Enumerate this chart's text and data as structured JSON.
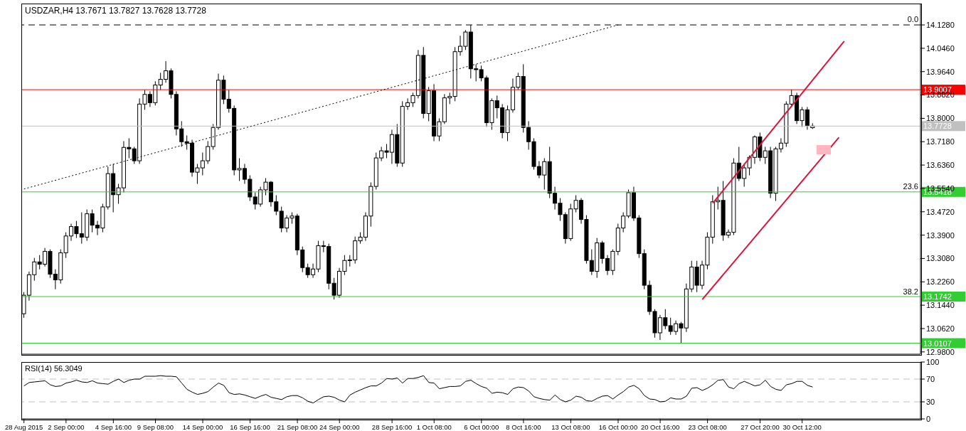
{
  "chart_data": [
    {
      "type": "candlestick",
      "title": "USDZAR,H4 13.7671 13.7827 13.7628 13.7728",
      "ohlc": [
        [
          13.114,
          13.19,
          13.1,
          13.179
        ],
        [
          13.179,
          13.262,
          13.16,
          13.251
        ],
        [
          13.251,
          13.31,
          13.23,
          13.296
        ],
        [
          13.296,
          13.32,
          13.27,
          13.288
        ],
        [
          13.288,
          13.345,
          13.28,
          13.333
        ],
        [
          13.333,
          13.34,
          13.24,
          13.253
        ],
        [
          13.253,
          13.27,
          13.2,
          13.233
        ],
        [
          13.233,
          13.34,
          13.22,
          13.328
        ],
        [
          13.328,
          13.4,
          13.31,
          13.387
        ],
        [
          13.387,
          13.43,
          13.37,
          13.42
        ],
        [
          13.42,
          13.44,
          13.38,
          13.395
        ],
        [
          13.395,
          13.47,
          13.36,
          13.383
        ],
        [
          13.383,
          13.48,
          13.37,
          13.465
        ],
        [
          13.465,
          13.48,
          13.4,
          13.425
        ],
        [
          13.425,
          13.44,
          13.39,
          13.415
        ],
        [
          13.415,
          13.5,
          13.4,
          13.489
        ],
        [
          13.489,
          13.63,
          13.48,
          13.606
        ],
        [
          13.606,
          13.64,
          13.47,
          13.532
        ],
        [
          13.532,
          13.57,
          13.5,
          13.556
        ],
        [
          13.556,
          13.72,
          13.54,
          13.698
        ],
        [
          13.698,
          13.73,
          13.66,
          13.693
        ],
        [
          13.693,
          13.7,
          13.64,
          13.651
        ],
        [
          13.651,
          13.87,
          13.64,
          13.85
        ],
        [
          13.85,
          13.9,
          13.83,
          13.884
        ],
        [
          13.884,
          13.895,
          13.84,
          13.855
        ],
        [
          13.855,
          13.93,
          13.845,
          13.917
        ],
        [
          13.917,
          13.96,
          13.9,
          13.937
        ],
        [
          13.937,
          14.001,
          13.925,
          13.967
        ],
        [
          13.967,
          13.975,
          13.87,
          13.884
        ],
        [
          13.884,
          13.895,
          13.74,
          13.763
        ],
        [
          13.763,
          13.79,
          13.7,
          13.718
        ],
        [
          13.718,
          13.74,
          13.69,
          13.713
        ],
        [
          13.713,
          13.725,
          13.595,
          13.611
        ],
        [
          13.611,
          13.64,
          13.57,
          13.626
        ],
        [
          13.626,
          13.68,
          13.6,
          13.651
        ],
        [
          13.651,
          13.72,
          13.64,
          13.701
        ],
        [
          13.701,
          13.78,
          13.69,
          13.768
        ],
        [
          13.768,
          13.957,
          13.76,
          13.934
        ],
        [
          13.934,
          13.95,
          13.85,
          13.867
        ],
        [
          13.867,
          13.9,
          13.82,
          13.835
        ],
        [
          13.835,
          13.845,
          13.6,
          13.619
        ],
        [
          13.619,
          13.66,
          13.58,
          13.624
        ],
        [
          13.624,
          13.64,
          13.57,
          13.586
        ],
        [
          13.586,
          13.6,
          13.51,
          13.524
        ],
        [
          13.524,
          13.54,
          13.48,
          13.499
        ],
        [
          13.499,
          13.56,
          13.49,
          13.549
        ],
        [
          13.549,
          13.59,
          13.53,
          13.576
        ],
        [
          13.576,
          13.58,
          13.49,
          13.507
        ],
        [
          13.507,
          13.53,
          13.46,
          13.474
        ],
        [
          13.474,
          13.49,
          13.4,
          13.415
        ],
        [
          13.415,
          13.46,
          13.4,
          13.45
        ],
        [
          13.45,
          13.47,
          13.43,
          13.457
        ],
        [
          13.457,
          13.465,
          13.32,
          13.338
        ],
        [
          13.338,
          13.35,
          13.26,
          13.276
        ],
        [
          13.276,
          13.29,
          13.24,
          13.251
        ],
        [
          13.251,
          13.29,
          13.24,
          13.271
        ],
        [
          13.271,
          13.37,
          13.26,
          13.353
        ],
        [
          13.353,
          13.37,
          13.33,
          13.35
        ],
        [
          13.35,
          13.36,
          13.2,
          13.221
        ],
        [
          13.221,
          13.24,
          13.164,
          13.179
        ],
        [
          13.179,
          13.275,
          13.17,
          13.263
        ],
        [
          13.263,
          13.32,
          13.25,
          13.301
        ],
        [
          13.301,
          13.32,
          13.28,
          13.303
        ],
        [
          13.303,
          13.385,
          13.29,
          13.37
        ],
        [
          13.37,
          13.4,
          13.36,
          13.383
        ],
        [
          13.383,
          13.47,
          13.37,
          13.457
        ],
        [
          13.457,
          13.575,
          13.42,
          13.561
        ],
        [
          13.561,
          13.68,
          13.55,
          13.661
        ],
        [
          13.661,
          13.7,
          13.65,
          13.686
        ],
        [
          13.686,
          13.71,
          13.66,
          13.681
        ],
        [
          13.681,
          13.76,
          13.64,
          13.743
        ],
        [
          13.743,
          13.78,
          13.63,
          13.643
        ],
        [
          13.643,
          13.86,
          13.63,
          13.842
        ],
        [
          13.842,
          13.87,
          13.83,
          13.855
        ],
        [
          13.855,
          13.89,
          13.84,
          13.88
        ],
        [
          13.88,
          14.04,
          13.87,
          14.021
        ],
        [
          14.021,
          14.05,
          13.8,
          13.817
        ],
        [
          13.817,
          13.91,
          13.79,
          13.897
        ],
        [
          13.897,
          13.92,
          13.72,
          13.738
        ],
        [
          13.738,
          13.8,
          13.72,
          13.788
        ],
        [
          13.788,
          13.885,
          13.78,
          13.872
        ],
        [
          13.872,
          13.89,
          13.85,
          13.877
        ],
        [
          13.877,
          14.05,
          13.86,
          14.034
        ],
        [
          14.034,
          14.09,
          14.02,
          14.053
        ],
        [
          14.053,
          14.11,
          14.04,
          14.103
        ],
        [
          14.103,
          14.128,
          13.94,
          13.974
        ],
        [
          13.974,
          13.99,
          13.93,
          13.971
        ],
        [
          13.971,
          13.985,
          13.93,
          13.942
        ],
        [
          13.942,
          13.95,
          13.77,
          13.785
        ],
        [
          13.785,
          13.87,
          13.76,
          13.862
        ],
        [
          13.862,
          13.88,
          13.8,
          13.837
        ],
        [
          13.837,
          13.85,
          13.73,
          13.75
        ],
        [
          13.75,
          13.845,
          13.72,
          13.83
        ],
        [
          13.83,
          13.94,
          13.82,
          13.909
        ],
        [
          13.909,
          13.96,
          13.9,
          13.947
        ],
        [
          13.947,
          13.99,
          13.75,
          13.768
        ],
        [
          13.768,
          13.79,
          13.69,
          13.718
        ],
        [
          13.718,
          13.73,
          13.62,
          13.631
        ],
        [
          13.631,
          13.65,
          13.59,
          13.601
        ],
        [
          13.601,
          13.66,
          13.55,
          13.648
        ],
        [
          13.648,
          13.7,
          13.52,
          13.537
        ],
        [
          13.537,
          13.56,
          13.48,
          13.502
        ],
        [
          13.502,
          13.52,
          13.44,
          13.462
        ],
        [
          13.462,
          13.47,
          13.36,
          13.378
        ],
        [
          13.378,
          13.5,
          13.37,
          13.482
        ],
        [
          13.482,
          13.53,
          13.47,
          13.512
        ],
        [
          13.512,
          13.52,
          13.43,
          13.445
        ],
        [
          13.445,
          13.46,
          13.29,
          13.301
        ],
        [
          13.301,
          13.34,
          13.25,
          13.263
        ],
        [
          13.263,
          13.38,
          13.24,
          13.363
        ],
        [
          13.363,
          13.37,
          13.29,
          13.308
        ],
        [
          13.308,
          13.32,
          13.25,
          13.266
        ],
        [
          13.266,
          13.34,
          13.25,
          13.333
        ],
        [
          13.333,
          13.43,
          13.32,
          13.415
        ],
        [
          13.415,
          13.47,
          13.4,
          13.457
        ],
        [
          13.457,
          13.55,
          13.45,
          13.539
        ],
        [
          13.539,
          13.56,
          13.44,
          13.45
        ],
        [
          13.45,
          13.46,
          13.31,
          13.325
        ],
        [
          13.325,
          13.34,
          13.2,
          13.214
        ],
        [
          13.214,
          13.23,
          13.11,
          13.122
        ],
        [
          13.122,
          13.13,
          13.03,
          13.047
        ],
        [
          13.047,
          13.11,
          13.022,
          13.1
        ],
        [
          13.1,
          13.13,
          13.06,
          13.072
        ],
        [
          13.072,
          13.1,
          13.04,
          13.052
        ],
        [
          13.052,
          13.09,
          13.04,
          13.079
        ],
        [
          13.079,
          13.085,
          13.011,
          13.064
        ],
        [
          13.064,
          13.22,
          13.05,
          13.201
        ],
        [
          13.201,
          13.3,
          13.19,
          13.278
        ],
        [
          13.278,
          13.3,
          13.19,
          13.214
        ],
        [
          13.214,
          13.3,
          13.2,
          13.285
        ],
        [
          13.285,
          13.4,
          13.27,
          13.383
        ],
        [
          13.383,
          13.53,
          13.36,
          13.507
        ],
        [
          13.507,
          13.56,
          13.48,
          13.512
        ],
        [
          13.512,
          13.58,
          13.37,
          13.39
        ],
        [
          13.39,
          13.41,
          13.38,
          13.4
        ],
        [
          13.4,
          13.66,
          13.39,
          13.643
        ],
        [
          13.643,
          13.7,
          13.58,
          13.589
        ],
        [
          13.589,
          13.64,
          13.56,
          13.626
        ],
        [
          13.626,
          13.67,
          13.6,
          13.663
        ],
        [
          13.663,
          13.74,
          13.64,
          13.735
        ],
        [
          13.735,
          13.75,
          13.65,
          13.663
        ],
        [
          13.663,
          13.7,
          13.64,
          13.686
        ],
        [
          13.686,
          13.7,
          13.52,
          13.537
        ],
        [
          13.537,
          13.7,
          13.51,
          13.693
        ],
        [
          13.693,
          13.73,
          13.68,
          13.713
        ],
        [
          13.713,
          13.86,
          13.7,
          13.85
        ],
        [
          13.85,
          13.901,
          13.84,
          13.88
        ],
        [
          13.88,
          13.89,
          13.78,
          13.792
        ],
        [
          13.792,
          13.84,
          13.77,
          13.83
        ],
        [
          13.83,
          13.84,
          13.76,
          13.775
        ],
        [
          13.7671,
          13.7827,
          13.7628,
          13.7728
        ],
        null,
        null,
        null,
        null,
        null,
        null,
        null,
        null,
        null,
        null,
        null,
        null,
        null,
        null,
        null,
        null,
        null,
        null,
        null,
        null
      ],
      "ylim": [
        12.972,
        14.203
      ],
      "yticks": [
        {
          "value": 12.98,
          "label": "12.9800"
        },
        {
          "value": 13.062,
          "label": "13.0620"
        },
        {
          "value": 13.144,
          "label": "13.1440"
        },
        {
          "value": 13.226,
          "label": "13.2260"
        },
        {
          "value": 13.308,
          "label": "13.3080"
        },
        {
          "value": 13.39,
          "label": "13.3900"
        },
        {
          "value": 13.472,
          "label": "13.4720"
        },
        {
          "value": 13.554,
          "label": "13.5540"
        },
        {
          "value": 13.636,
          "label": "13.6360"
        },
        {
          "value": 13.718,
          "label": "13.7180"
        },
        {
          "value": 13.8,
          "label": "13.8000"
        },
        {
          "value": 13.882,
          "label": "13.8820"
        },
        {
          "value": 13.964,
          "label": "13.9640"
        },
        {
          "value": 14.046,
          "label": "14.0460"
        },
        {
          "value": 14.128,
          "label": "14.1280"
        }
      ],
      "tick_labels": "y",
      "ref_lines": [
        {
          "axis": "y",
          "value": 14.128,
          "color": "#000000",
          "line_style": "dashed"
        },
        {
          "axis": "y",
          "value": 13.9007,
          "label": "13.9007",
          "color": "#ff0000"
        },
        {
          "axis": "y",
          "value": 13.7728,
          "label": "13.7728",
          "color": "#c0c0c0"
        },
        {
          "axis": "y",
          "value": 13.5418,
          "label": "13.5418",
          "color": "#32cd32"
        },
        {
          "axis": "y",
          "value": 13.1742,
          "label": "13.1742",
          "color": "#32cd32"
        },
        {
          "axis": "y",
          "value": 13.0107,
          "label": "13.0107",
          "color": "#32cd32"
        }
      ],
      "annotations": [
        {
          "text": "0.0",
          "y": 14.128
        },
        {
          "text": "23.6",
          "y": 13.5418
        },
        {
          "text": "38.2",
          "y": 13.1742
        }
      ],
      "series": [
        {
          "type": "line",
          "color": "#000000",
          "line_style": "dotted",
          "values": [
            13.552,
            null,
            null,
            null,
            null,
            null,
            null,
            null,
            null,
            null,
            null,
            null,
            null,
            null,
            null,
            null,
            null,
            null,
            null,
            null,
            null,
            null,
            null,
            null,
            null,
            null,
            null,
            null,
            null,
            null,
            null,
            null,
            null,
            null,
            null,
            null,
            null,
            null,
            null,
            null,
            null,
            null,
            null,
            null,
            null,
            null,
            null,
            null,
            null,
            null,
            null,
            null,
            null,
            null,
            null,
            null,
            null,
            null,
            null,
            null,
            null,
            null,
            null,
            null,
            null,
            null,
            null,
            null,
            null,
            null,
            null,
            null,
            null,
            null,
            null,
            null,
            null,
            null,
            null,
            null,
            null,
            null,
            null,
            null,
            null,
            null,
            null,
            null,
            null,
            null,
            null,
            null,
            null,
            null,
            null,
            null,
            null,
            null,
            null,
            null,
            null,
            null,
            null,
            null,
            null,
            null,
            null,
            null,
            null,
            null,
            null,
            null,
            null,
            14.128,
            null,
            null,
            null,
            null,
            null,
            null,
            null,
            null,
            null,
            null,
            null,
            null,
            null,
            null,
            null,
            null,
            null,
            null,
            null,
            null,
            null,
            null,
            null,
            null,
            null,
            null,
            null,
            null,
            null,
            null,
            null,
            null,
            null,
            null,
            null,
            null,
            null,
            null,
            null,
            null,
            null,
            null,
            null,
            null,
            null,
            null,
            null,
            null,
            null,
            null,
            null,
            null,
            null,
            null,
            null,
            null,
            null
          ]
        },
        {
          "type": "line",
          "color": "#dc143c",
          "line_style": "solid",
          "values": [
            null,
            null,
            null,
            null,
            null,
            null,
            null,
            null,
            null,
            null,
            null,
            null,
            null,
            null,
            null,
            null,
            null,
            null,
            null,
            null,
            null,
            null,
            null,
            null,
            null,
            null,
            null,
            null,
            null,
            null,
            null,
            null,
            null,
            null,
            null,
            null,
            null,
            null,
            null,
            null,
            null,
            null,
            null,
            null,
            null,
            null,
            null,
            null,
            null,
            null,
            null,
            null,
            null,
            null,
            null,
            null,
            null,
            null,
            null,
            null,
            null,
            null,
            null,
            null,
            null,
            null,
            null,
            null,
            null,
            null,
            null,
            null,
            null,
            null,
            null,
            null,
            null,
            null,
            null,
            null,
            null,
            null,
            null,
            null,
            null,
            null,
            null,
            null,
            null,
            null,
            null,
            null,
            null,
            null,
            null,
            null,
            null,
            null,
            null,
            null,
            null,
            null,
            null,
            null,
            null,
            null,
            null,
            null,
            null,
            null,
            null,
            null,
            null,
            null,
            null,
            null,
            null,
            null,
            null,
            null,
            null,
            null,
            null,
            null,
            null,
            null,
            null,
            null,
            null,
            null,
            null,
            13.502,
            null,
            null,
            null,
            null,
            null,
            null,
            null,
            null,
            null,
            null,
            null,
            null,
            null,
            null,
            null,
            null,
            null,
            null,
            null,
            null,
            null,
            null,
            null,
            null,
            14.071,
            null,
            null,
            null,
            null,
            null,
            null,
            null,
            null,
            null,
            null,
            null,
            null,
            null,
            null
          ]
        },
        {
          "type": "line",
          "color": "#dc143c",
          "line_style": "solid",
          "values": [
            null,
            null,
            null,
            null,
            null,
            null,
            null,
            null,
            null,
            null,
            null,
            null,
            null,
            null,
            null,
            null,
            null,
            null,
            null,
            null,
            null,
            null,
            null,
            null,
            null,
            null,
            null,
            null,
            null,
            null,
            null,
            null,
            null,
            null,
            null,
            null,
            null,
            null,
            null,
            null,
            null,
            null,
            null,
            null,
            null,
            null,
            null,
            null,
            null,
            null,
            null,
            null,
            null,
            null,
            null,
            null,
            null,
            null,
            null,
            null,
            null,
            null,
            null,
            null,
            null,
            null,
            null,
            null,
            null,
            null,
            null,
            null,
            null,
            null,
            null,
            null,
            null,
            null,
            null,
            null,
            null,
            null,
            null,
            null,
            null,
            null,
            null,
            null,
            null,
            null,
            null,
            null,
            null,
            null,
            null,
            null,
            null,
            null,
            null,
            null,
            null,
            null,
            null,
            null,
            null,
            null,
            null,
            null,
            null,
            null,
            null,
            null,
            null,
            null,
            null,
            null,
            null,
            null,
            null,
            null,
            null,
            null,
            null,
            null,
            null,
            null,
            null,
            null,
            null,
            13.164,
            null,
            null,
            null,
            null,
            null,
            null,
            null,
            null,
            null,
            null,
            null,
            null,
            null,
            null,
            null,
            null,
            null,
            null,
            null,
            null,
            null,
            null,
            null,
            null,
            null,
            13.733,
            null,
            null,
            null,
            null,
            null,
            null,
            null,
            null,
            null,
            null,
            null,
            null,
            null,
            null,
            null
          ]
        }
      ]
    },
    {
      "type": "line",
      "title": "RSI(14) 56.3049",
      "categories": [
        "28 Aug 2015",
        null,
        null,
        null,
        null,
        null,
        null,
        null,
        "2 Sep 00:00",
        null,
        null,
        null,
        null,
        null,
        null,
        null,
        null,
        "4 Sep 16:00",
        null,
        null,
        null,
        null,
        null,
        null,
        null,
        "9 Sep 08:00",
        null,
        null,
        null,
        null,
        null,
        null,
        null,
        null,
        "14 Sep 00:00",
        null,
        null,
        null,
        null,
        null,
        null,
        null,
        null,
        "16 Sep 16:00",
        null,
        null,
        null,
        null,
        null,
        null,
        null,
        null,
        "21 Sep 08:00",
        null,
        null,
        null,
        null,
        null,
        null,
        null,
        "24 Sep 00:00",
        null,
        null,
        null,
        null,
        null,
        null,
        null,
        null,
        null,
        "28 Sep 16:00",
        null,
        null,
        null,
        null,
        null,
        null,
        null,
        "1 Oct 08:00",
        null,
        null,
        null,
        null,
        null,
        null,
        null,
        null,
        "6 Oct 00:00",
        null,
        null,
        null,
        null,
        null,
        null,
        null,
        "8 Oct 16:00",
        null,
        null,
        null,
        null,
        null,
        null,
        null,
        null,
        "13 Oct 08:00",
        null,
        null,
        null,
        null,
        null,
        null,
        null,
        null,
        "16 Oct 00:00",
        null,
        null,
        null,
        null,
        null,
        null,
        null,
        "20 Oct 16:00",
        null,
        null,
        null,
        null,
        null,
        null,
        null,
        null,
        "23 Oct 08:00",
        null,
        null,
        null,
        null,
        null,
        null,
        null,
        null,
        null,
        "27 Oct 20:00",
        null,
        null,
        null,
        null,
        null,
        null,
        null,
        "30 Oct 12:00",
        null,
        null,
        null,
        null,
        null,
        null,
        null,
        null,
        null,
        null,
        null,
        null,
        null,
        null,
        null,
        null,
        null,
        null,
        null,
        null,
        null,
        null
      ],
      "values": [
        58,
        64,
        65,
        66,
        67,
        60,
        57,
        58,
        63,
        65,
        68,
        65,
        64,
        67,
        63,
        62,
        61,
        66,
        70,
        64,
        68,
        70,
        70,
        75,
        75,
        75,
        76,
        75,
        75,
        74,
        63,
        52,
        47,
        43,
        45,
        48,
        56,
        63,
        59,
        46,
        43,
        44,
        42,
        39,
        36,
        40,
        43,
        38,
        36,
        34,
        39,
        41,
        41,
        37,
        31,
        28,
        34,
        39,
        40,
        38,
        33,
        30,
        42,
        47,
        51,
        55,
        58,
        58,
        63,
        71,
        70,
        72,
        63,
        71,
        71,
        73,
        76,
        64,
        63,
        53,
        55,
        57,
        57,
        58,
        66,
        68,
        62,
        57,
        54,
        45,
        47,
        46,
        43,
        53,
        56,
        55,
        49,
        39,
        36,
        34,
        33,
        42,
        34,
        30,
        33,
        40,
        38,
        32,
        31,
        36,
        40,
        41,
        35,
        42,
        48,
        56,
        59,
        53,
        41,
        35,
        34,
        30,
        31,
        37,
        35,
        35,
        40,
        54,
        55,
        50,
        54,
        60,
        68,
        69,
        56,
        53,
        62,
        66,
        62,
        58,
        60,
        68,
        57,
        52,
        50,
        60,
        62,
        66,
        66,
        59,
        56,
        null,
        null,
        null,
        null,
        null,
        null,
        null,
        null,
        null,
        null,
        null,
        null,
        null,
        null,
        null,
        null,
        null,
        null,
        null,
        null
      ],
      "color": "#000000",
      "ylim": [
        0,
        100
      ],
      "yticks": [
        0,
        30,
        70,
        100
      ],
      "ref_lines": [
        {
          "axis": "y",
          "value": 70,
          "color": "#c0c0c0",
          "line_style": "dashed"
        },
        {
          "axis": "y",
          "value": 30,
          "color": "#c0c0c0",
          "line_style": "dashed"
        }
      ]
    }
  ]
}
